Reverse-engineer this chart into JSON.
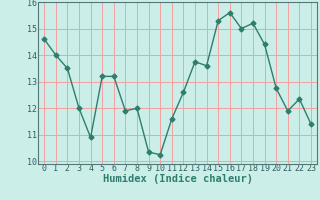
{
  "x": [
    0,
    1,
    2,
    3,
    4,
    5,
    6,
    7,
    8,
    9,
    10,
    11,
    12,
    13,
    14,
    15,
    16,
    17,
    18,
    19,
    20,
    21,
    22,
    23
  ],
  "y": [
    14.6,
    14.0,
    13.5,
    12.0,
    10.9,
    13.2,
    13.2,
    11.9,
    12.0,
    10.35,
    10.25,
    11.6,
    12.6,
    13.75,
    13.6,
    15.3,
    15.6,
    15.0,
    15.2,
    14.4,
    12.75,
    11.9,
    12.35,
    11.4
  ],
  "line_color": "#2e7d6e",
  "marker": "D",
  "marker_size": 2.5,
  "bg_color": "#cceee8",
  "grid_color": "#f5a0a0",
  "title": "",
  "xlabel": "Humidex (Indice chaleur)",
  "ylabel": "",
  "xlim": [
    -0.5,
    23.5
  ],
  "ylim": [
    9.9,
    16.0
  ],
  "yticks": [
    10,
    11,
    12,
    13,
    14,
    15,
    16
  ],
  "xticks": [
    0,
    1,
    2,
    3,
    4,
    5,
    6,
    7,
    8,
    9,
    10,
    11,
    12,
    13,
    14,
    15,
    16,
    17,
    18,
    19,
    20,
    21,
    22,
    23
  ],
  "xlabel_fontsize": 7.5,
  "tick_fontsize": 6,
  "line_width": 1.0
}
